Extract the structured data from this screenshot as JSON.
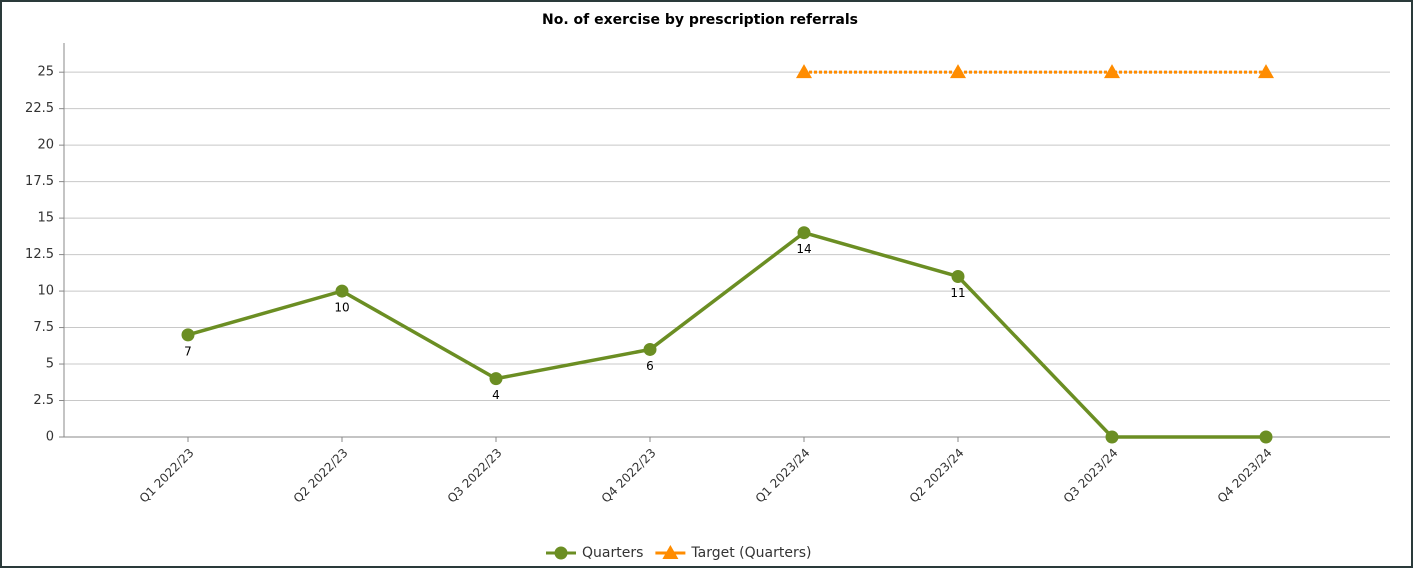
{
  "chart_data": {
    "type": "line",
    "title": "No. of exercise by prescription referrals",
    "categories": [
      "Q1 2022/23",
      "Q2 2022/23",
      "Q3 2022/23",
      "Q4 2022/23",
      "Q1 2023/24",
      "Q2 2023/24",
      "Q3 2023/24",
      "Q4 2023/24"
    ],
    "series": [
      {
        "name": "Quarters",
        "color": "#6b8e23",
        "marker": "circle",
        "values": [
          7,
          10,
          4,
          6,
          14,
          11,
          0,
          0
        ],
        "value_labels": [
          "7",
          "10",
          "4",
          "6",
          "14",
          "11",
          null,
          null
        ]
      },
      {
        "name": "Target (Quarters)",
        "color": "#ff8c00",
        "marker": "triangle",
        "dashed": true,
        "values": [
          null,
          null,
          null,
          null,
          25,
          25,
          25,
          25
        ]
      }
    ],
    "ylim": [
      0,
      27
    ],
    "yticks": [
      0,
      2.5,
      5,
      7.5,
      10,
      12.5,
      15,
      17.5,
      20,
      22.5,
      25
    ],
    "grid": true,
    "legend": "bottom"
  }
}
